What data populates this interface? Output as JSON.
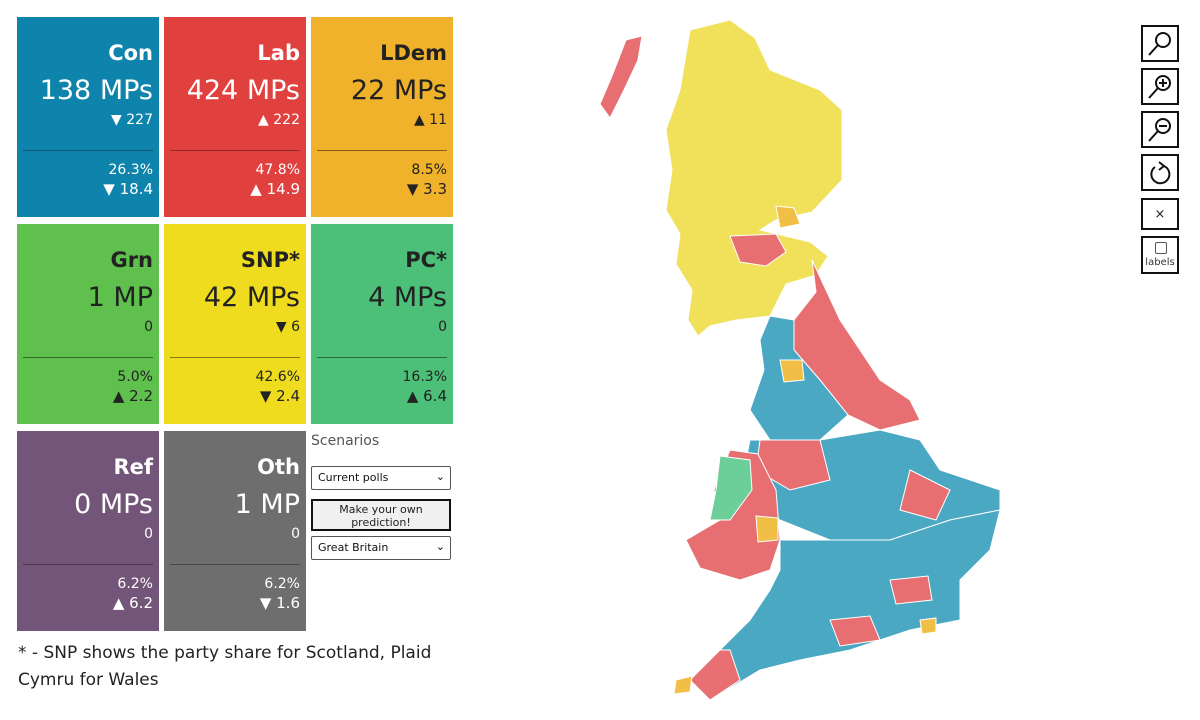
{
  "parties": [
    {
      "id": "con",
      "name": "Con",
      "mps": "138 MPs",
      "mp_change": "▼ 227",
      "share": "26.3%",
      "share_change": "▼ 18.4",
      "color": "#0e83ab"
    },
    {
      "id": "lab",
      "name": "Lab",
      "mps": "424 MPs",
      "mp_change": "▲ 222",
      "share": "47.8%",
      "share_change": "▲ 14.9",
      "color": "#e0413f"
    },
    {
      "id": "ldem",
      "name": "LDem",
      "mps": "22 MPs",
      "mp_change": "▲ 11",
      "share": "8.5%",
      "share_change": "▼ 3.3",
      "color": "#f0b12b"
    },
    {
      "id": "grn",
      "name": "Grn",
      "mps": "1 MP",
      "mp_change": "0",
      "share": "5.0%",
      "share_change": "▲ 2.2",
      "color": "#5fc04d"
    },
    {
      "id": "snp",
      "name": "SNP*",
      "mps": "42 MPs",
      "mp_change": "▼ 6",
      "share": "42.6%",
      "share_change": "▼ 2.4",
      "color": "#f0dc1e"
    },
    {
      "id": "pc",
      "name": "PC*",
      "mps": "4 MPs",
      "mp_change": "0",
      "share": "16.3%",
      "share_change": "▲ 6.4",
      "color": "#4cbf78"
    },
    {
      "id": "ref",
      "name": "Ref",
      "mps": "0 MPs",
      "mp_change": "0",
      "share": "6.2%",
      "share_change": "▲ 6.2",
      "color": "#735579"
    },
    {
      "id": "oth",
      "name": "Oth",
      "mps": "1 MP",
      "mp_change": "0",
      "share": "6.2%",
      "share_change": "▼ 1.6",
      "color": "#6e6e6e"
    }
  ],
  "scenarios": {
    "label": "Scenarios",
    "poll_select": "Current polls",
    "prediction_button": "Make your own prediction!",
    "region_select": "Great Britain"
  },
  "footnote": "* - SNP shows the party share for Scotland, Plaid Cymru for Wales",
  "map_controls": {
    "search_icon": "search-icon",
    "zoom_in_icon": "zoom-in-icon",
    "zoom_out_icon": "zoom-out-icon",
    "reset_icon": "reset-icon",
    "close_symbol": "×",
    "labels_text": "labels"
  },
  "map_colors": {
    "scotland": "#f0e05a",
    "england_lab": "#e76f72",
    "england_con": "#4aa8c3",
    "wales_pc": "#6ccf9a",
    "ldem": "#f2bf46",
    "lines": "#ffffff"
  }
}
